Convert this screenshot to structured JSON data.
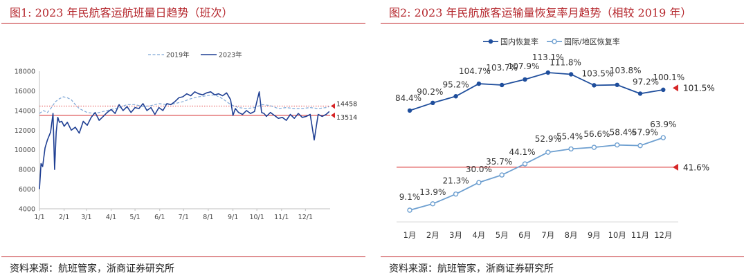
{
  "panel1": {
    "title": "图1:   2023 年民航客运航班量日趋势（班次）",
    "source": "资料来源：航班管家，浙商证券研究所",
    "chart_data": {
      "type": "line",
      "legend": [
        "2019年",
        "2023年"
      ],
      "legend_position": "top-right",
      "ylim": [
        4000,
        18000
      ],
      "yticks": [
        4000,
        6000,
        8000,
        10000,
        12000,
        14000,
        16000,
        18000
      ],
      "ytick_labels": [
        "4000",
        "6000",
        "8000",
        "10000",
        "12000",
        "14000",
        "16000",
        "18000"
      ],
      "xtick_labels": [
        "1/1",
        "2/1",
        "3/1",
        "4/1",
        "5/1",
        "6/1",
        "7/1",
        "8/1",
        "9/1",
        "10/1",
        "11/1",
        "12/1"
      ],
      "xtick_days": [
        0,
        31,
        59,
        90,
        120,
        151,
        181,
        212,
        243,
        273,
        304,
        334
      ],
      "x_range_days": [
        0,
        365
      ],
      "series": [
        {
          "name": "2019年",
          "style": "dashed",
          "color": "#7fa7d6",
          "x_days": [
            0,
            5,
            10,
            15,
            20,
            25,
            30,
            35,
            40,
            45,
            50,
            55,
            60,
            70,
            80,
            90,
            100,
            110,
            120,
            130,
            140,
            150,
            160,
            170,
            180,
            190,
            200,
            210,
            220,
            230,
            240,
            250,
            260,
            270,
            280,
            290,
            300,
            310,
            320,
            330,
            340,
            350,
            360,
            364
          ],
          "values": [
            13700,
            14000,
            13800,
            14300,
            14900,
            15200,
            15400,
            15300,
            15100,
            14600,
            14200,
            14000,
            13800,
            13700,
            13900,
            14100,
            14300,
            14600,
            14600,
            14400,
            14500,
            14700,
            14600,
            14700,
            14900,
            15200,
            15400,
            15500,
            15600,
            15200,
            14600,
            14300,
            14200,
            14300,
            14600,
            14500,
            14200,
            14300,
            14200,
            14200,
            14300,
            14200,
            14300,
            14400
          ]
        },
        {
          "name": "2023年",
          "style": "solid",
          "color": "#1f3f93",
          "x_days": [
            0,
            2,
            4,
            7,
            10,
            14,
            17,
            19,
            21,
            23,
            25,
            28,
            31,
            35,
            40,
            45,
            50,
            55,
            60,
            65,
            70,
            75,
            80,
            85,
            90,
            95,
            100,
            105,
            110,
            115,
            120,
            125,
            130,
            135,
            140,
            145,
            150,
            155,
            160,
            165,
            170,
            175,
            180,
            185,
            190,
            195,
            200,
            205,
            210,
            215,
            220,
            225,
            230,
            235,
            240,
            243,
            246,
            250,
            255,
            260,
            265,
            270,
            273,
            276,
            279,
            282,
            285,
            290,
            295,
            300,
            305,
            310,
            315,
            320,
            325,
            330,
            335,
            340,
            345,
            350,
            355,
            360,
            364
          ],
          "values": [
            6000,
            8600,
            8300,
            10200,
            11000,
            11800,
            13700,
            8000,
            11800,
            13300,
            12800,
            12900,
            12400,
            12800,
            12000,
            12300,
            11700,
            12900,
            12500,
            13300,
            13800,
            13000,
            13400,
            13800,
            14100,
            13700,
            14600,
            14000,
            14400,
            13800,
            14300,
            14200,
            14700,
            14000,
            14300,
            13600,
            14300,
            14000,
            14700,
            14600,
            14900,
            15300,
            15400,
            15700,
            15500,
            15900,
            15700,
            15600,
            15800,
            15900,
            15600,
            15700,
            15500,
            15800,
            15100,
            13500,
            14200,
            13800,
            13600,
            14000,
            13700,
            13900,
            14900,
            15900,
            13800,
            13700,
            13400,
            13800,
            13500,
            13200,
            13300,
            13000,
            13600,
            13200,
            13700,
            13300,
            13400,
            13600,
            11000,
            13600,
            13400,
            13600,
            13900
          ]
        }
      ],
      "reference_lines": [
        {
          "value": 14458,
          "label": "14458",
          "style": "dotted",
          "color": "#e24a4a"
        },
        {
          "value": 13514,
          "label": "13514",
          "style": "solid",
          "color": "#d62728"
        }
      ]
    }
  },
  "panel2": {
    "title": "图2:   2023 年民航旅客运输量恢复率月趋势（相较 2019 年）",
    "source": "资料来源：航班管家，浙商证券研究所",
    "chart_data": {
      "type": "line",
      "legend": [
        "国内恢复率",
        "国际/地区恢复率"
      ],
      "legend_position": "top",
      "categories": [
        "1月",
        "2月",
        "3月",
        "4月",
        "5月",
        "6月",
        "7月",
        "8月",
        "9月",
        "10月",
        "11月",
        "12月"
      ],
      "ylim_percent": [
        0,
        125
      ],
      "series": [
        {
          "name": "国内恢复率",
          "color": "#1f4e9c",
          "values": [
            84.4,
            90.2,
            95.2,
            104.7,
            103.7,
            107.9,
            113.1,
            111.8,
            103.5,
            103.8,
            97.2,
            100.1
          ],
          "labels": [
            "84.4%",
            "90.2%",
            "95.2%",
            "104.7%",
            "103.7%",
            "107.9%",
            "113.1%",
            "111.8%",
            "103.5%",
            "103.8%",
            "97.2%",
            "100.1%"
          ]
        },
        {
          "name": "国际/地区恢复率",
          "color": "#6d9fd0",
          "values": [
            9.1,
            13.9,
            21.3,
            30.0,
            35.7,
            44.1,
            52.9,
            55.4,
            56.6,
            58.4,
            57.9,
            63.9
          ],
          "labels": [
            "9.1%",
            "13.9%",
            "21.3%",
            "30.0%",
            "35.7%",
            "44.1%",
            "52.9%",
            "55.4%",
            "56.6%",
            "58.4%",
            "57.9%",
            "63.9%"
          ]
        }
      ],
      "markers": [
        {
          "value": 101.5,
          "label": "101.5%",
          "series": "国内恢复率",
          "line": false
        },
        {
          "value": 41.6,
          "label": "41.6%",
          "series": "国际/地区恢复率",
          "line": true
        }
      ]
    }
  }
}
